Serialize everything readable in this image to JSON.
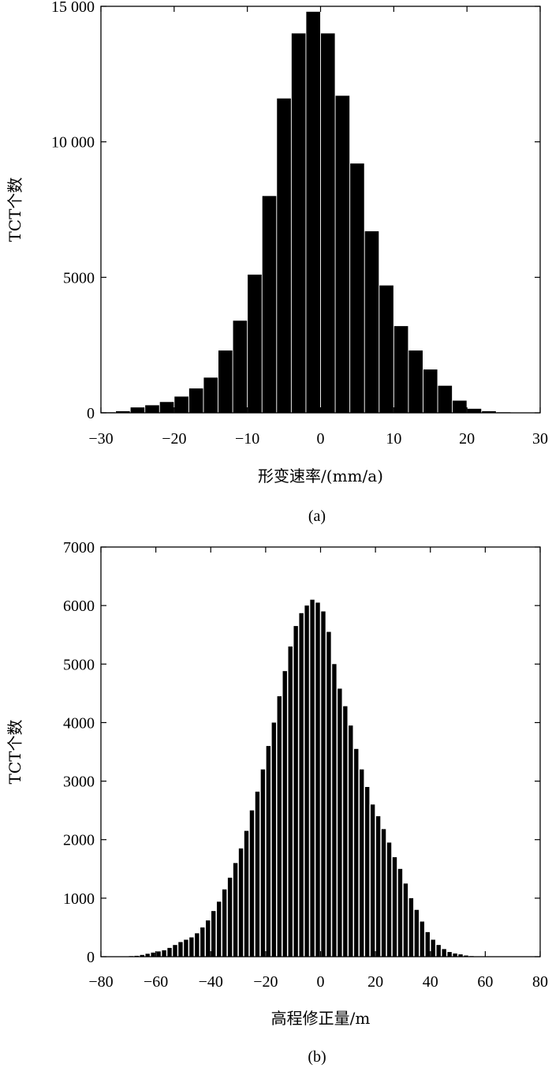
{
  "chart_data": [
    {
      "type": "bar",
      "caption": "(a)",
      "xlabel": "形变速率/(mm/a)",
      "ylabel": "TCT个数",
      "xlim": [
        -30,
        30
      ],
      "ylim": [
        0,
        15000
      ],
      "xticks": [
        -30,
        -20,
        -10,
        0,
        10,
        20,
        30
      ],
      "xtick_labels": [
        "−30",
        "−20",
        "−10",
        "0",
        "10",
        "20",
        "30"
      ],
      "yticks": [
        0,
        5000,
        10000,
        15000
      ],
      "ytick_labels": [
        "0",
        "5000",
        "10 000",
        "15 000"
      ],
      "bar_width": 1.9,
      "bar_color": "#000000",
      "x": [
        -29,
        -27,
        -25,
        -23,
        -21,
        -19,
        -17,
        -15,
        -13,
        -11,
        -9,
        -7,
        -5,
        -3,
        -1,
        1,
        3,
        5,
        7,
        9,
        11,
        13,
        15,
        17,
        19,
        21,
        23,
        25,
        27,
        29
      ],
      "values": [
        20,
        60,
        200,
        280,
        400,
        600,
        900,
        1300,
        2300,
        3400,
        5100,
        8000,
        11600,
        14000,
        14800,
        14000,
        11700,
        9200,
        6700,
        4700,
        3200,
        2300,
        1600,
        1000,
        450,
        150,
        60,
        20,
        10,
        5
      ]
    },
    {
      "type": "bar",
      "caption": "(b)",
      "xlabel": "高程修正量/m",
      "ylabel": "TCT个数",
      "xlim": [
        -80,
        80
      ],
      "ylim": [
        0,
        7000
      ],
      "xticks": [
        -80,
        -60,
        -40,
        -20,
        0,
        20,
        40,
        60,
        80
      ],
      "xtick_labels": [
        "−80",
        "−60",
        "−40",
        "−20",
        "0",
        "20",
        "40",
        "60",
        "80"
      ],
      "yticks": [
        0,
        1000,
        2000,
        3000,
        4000,
        5000,
        6000,
        7000
      ],
      "ytick_labels": [
        "0",
        "1000",
        "2000",
        "3000",
        "4000",
        "5000",
        "6000",
        "7000"
      ],
      "bar_width": 1.55,
      "bar_color": "#000000",
      "x": [
        -71,
        -69,
        -67,
        -65,
        -63,
        -61,
        -59,
        -57,
        -55,
        -53,
        -51,
        -49,
        -47,
        -45,
        -43,
        -41,
        -39,
        -37,
        -35,
        -33,
        -31,
        -29,
        -27,
        -25,
        -23,
        -21,
        -19,
        -17,
        -15,
        -13,
        -11,
        -9,
        -7,
        -5,
        -3,
        -1,
        1,
        3,
        5,
        7,
        9,
        11,
        13,
        15,
        17,
        19,
        21,
        23,
        25,
        27,
        29,
        31,
        33,
        35,
        37,
        39,
        41,
        43,
        45,
        47,
        49,
        51,
        53,
        55,
        57,
        59,
        61,
        63,
        65
      ],
      "values": [
        5,
        10,
        15,
        30,
        50,
        70,
        90,
        110,
        150,
        200,
        250,
        290,
        330,
        400,
        500,
        620,
        780,
        940,
        1150,
        1350,
        1600,
        1850,
        2150,
        2500,
        2820,
        3200,
        3600,
        4000,
        4450,
        4880,
        5300,
        5650,
        5870,
        6000,
        6100,
        6050,
        5900,
        5550,
        5000,
        4580,
        4280,
        3950,
        3550,
        3200,
        2900,
        2600,
        2400,
        2180,
        1950,
        1700,
        1500,
        1250,
        1000,
        800,
        600,
        420,
        290,
        200,
        130,
        80,
        55,
        40,
        20,
        10,
        5,
        3,
        2,
        1,
        1
      ]
    }
  ]
}
